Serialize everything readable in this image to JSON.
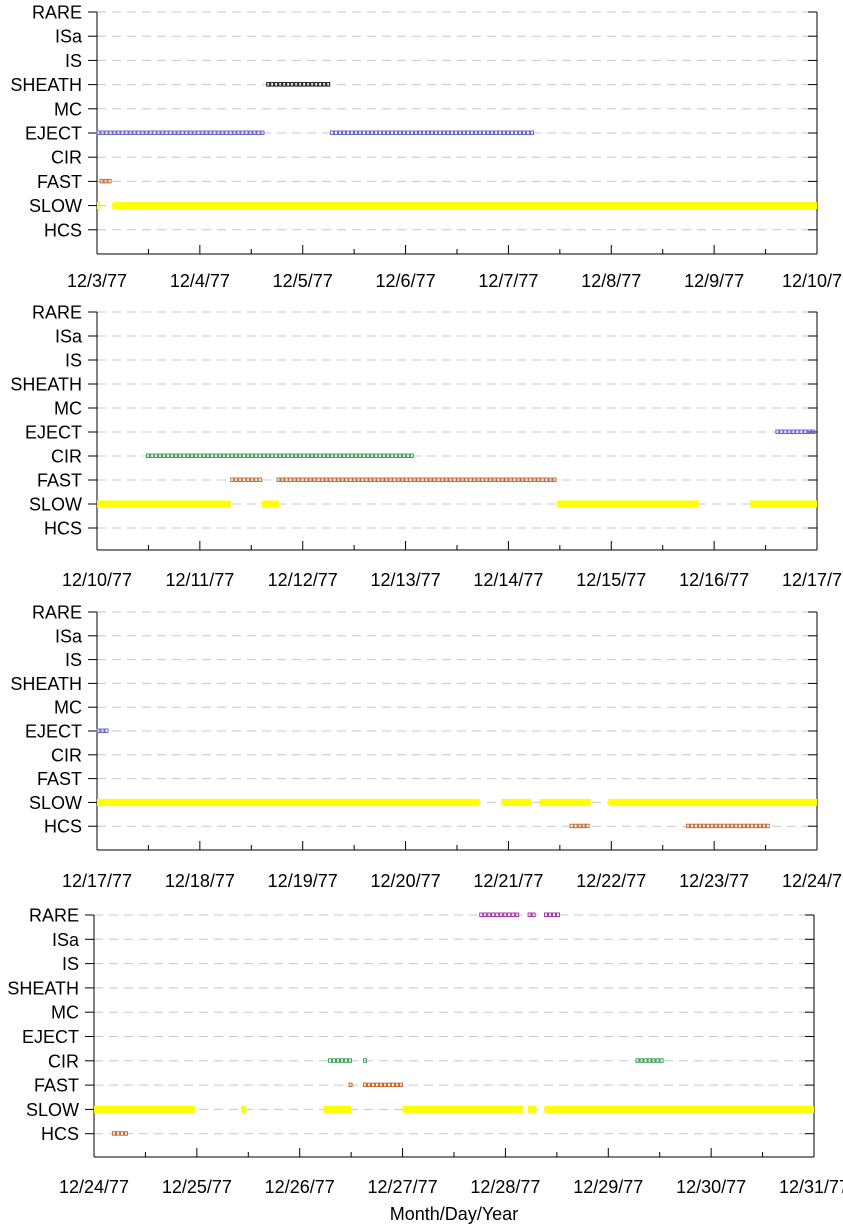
{
  "chart_data": [
    {
      "type": "event-timeline",
      "categories": [
        "RARE",
        "ISa",
        "IS",
        "SHEATH",
        "MC",
        "EJECT",
        "CIR",
        "FAST",
        "SLOW",
        "HCS"
      ],
      "x_ticks": [
        "12/3/77",
        "12/4/77",
        "12/5/77",
        "12/6/77",
        "12/7/77",
        "12/8/77",
        "12/9/77",
        "12/10/77"
      ],
      "xlim_days": [
        0,
        7
      ],
      "grid": "dashed-horizontal",
      "series": [
        {
          "category": "SHEATH",
          "color": "#000000",
          "style": "hollow-square",
          "intervals": [
            [
              1.65,
              2.27
            ]
          ]
        },
        {
          "category": "EJECT",
          "color": "#5a5ad0",
          "style": "hollow-square",
          "intervals": [
            [
              0.0,
              1.65
            ],
            [
              2.27,
              4.27
            ]
          ]
        },
        {
          "category": "FAST",
          "color": "#c46020",
          "style": "hollow-square",
          "intervals": [
            [
              0.03,
              0.15
            ]
          ]
        },
        {
          "category": "SLOW",
          "color": "#ffff00",
          "style": "solid-bar",
          "intervals": [
            [
              0.0,
              0.02
            ],
            [
              0.15,
              7.0
            ]
          ]
        }
      ]
    },
    {
      "type": "event-timeline",
      "categories": [
        "RARE",
        "ISa",
        "IS",
        "SHEATH",
        "MC",
        "EJECT",
        "CIR",
        "FAST",
        "SLOW",
        "HCS"
      ],
      "x_ticks": [
        "12/10/77",
        "12/11/77",
        "12/12/77",
        "12/13/77",
        "12/14/77",
        "12/15/77",
        "12/16/77",
        "12/17/77"
      ],
      "xlim_days": [
        0,
        7
      ],
      "grid": "dashed-horizontal",
      "series": [
        {
          "category": "EJECT",
          "color": "#5a5ad0",
          "style": "hollow-square",
          "intervals": [
            [
              6.6,
              6.97
            ]
          ]
        },
        {
          "category": "CIR",
          "color": "#2a9a4a",
          "style": "hollow-square",
          "intervals": [
            [
              0.48,
              3.1
            ]
          ]
        },
        {
          "category": "FAST",
          "color": "#c46020",
          "style": "hollow-square",
          "intervals": [
            [
              1.3,
              1.62
            ],
            [
              1.75,
              4.47
            ]
          ]
        },
        {
          "category": "SLOW",
          "color": "#ffff00",
          "style": "solid-bar",
          "intervals": [
            [
              0.0,
              1.3
            ],
            [
              1.6,
              1.77
            ],
            [
              4.47,
              5.85
            ],
            [
              6.35,
              7.0
            ]
          ]
        }
      ]
    },
    {
      "type": "event-timeline",
      "categories": [
        "RARE",
        "ISa",
        "IS",
        "SHEATH",
        "MC",
        "EJECT",
        "CIR",
        "FAST",
        "SLOW",
        "HCS"
      ],
      "x_ticks": [
        "12/17/77",
        "12/18/77",
        "12/19/77",
        "12/20/77",
        "12/21/77",
        "12/22/77",
        "12/23/77",
        "12/24/77"
      ],
      "xlim_days": [
        0,
        7
      ],
      "grid": "dashed-horizontal",
      "series": [
        {
          "category": "EJECT",
          "color": "#5a5ad0",
          "style": "hollow-square",
          "intervals": [
            [
              0.0,
              0.1
            ]
          ]
        },
        {
          "category": "SLOW",
          "color": "#ffff00",
          "style": "solid-bar",
          "intervals": [
            [
              0.0,
              3.72
            ],
            [
              3.93,
              4.22
            ],
            [
              4.3,
              4.8
            ],
            [
              4.97,
              7.0
            ]
          ]
        },
        {
          "category": "HCS",
          "color": "#c46020",
          "style": "hollow-square",
          "intervals": [
            [
              4.6,
              4.8
            ],
            [
              5.73,
              6.53
            ]
          ]
        }
      ]
    },
    {
      "type": "event-timeline",
      "categories": [
        "RARE",
        "ISa",
        "IS",
        "SHEATH",
        "MC",
        "EJECT",
        "CIR",
        "FAST",
        "SLOW",
        "HCS"
      ],
      "x_ticks": [
        "12/24/77",
        "12/25/77",
        "12/26/77",
        "12/27/77",
        "12/28/77",
        "12/29/77",
        "12/30/77",
        "12/31/77"
      ],
      "xlim_days": [
        0,
        7
      ],
      "grid": "dashed-horizontal",
      "xlabel": "Month/Day/Year",
      "series": [
        {
          "category": "RARE",
          "color": "#9a2a9a",
          "style": "hollow-square",
          "intervals": [
            [
              3.75,
              4.15
            ],
            [
              4.22,
              4.3
            ],
            [
              4.38,
              4.53
            ]
          ]
        },
        {
          "category": "CIR",
          "color": "#2a9a4a",
          "style": "hollow-square",
          "intervals": [
            [
              2.28,
              2.53
            ],
            [
              2.62,
              2.67
            ],
            [
              5.27,
              5.55
            ]
          ]
        },
        {
          "category": "FAST",
          "color": "#c46020",
          "style": "hollow-square",
          "intervals": [
            [
              2.48,
              2.53
            ],
            [
              2.62,
              3.0
            ]
          ]
        },
        {
          "category": "SLOW",
          "color": "#ffff00",
          "style": "solid-bar",
          "intervals": [
            [
              0.0,
              0.98
            ],
            [
              1.43,
              1.48
            ],
            [
              2.23,
              2.5
            ],
            [
              3.0,
              4.17
            ],
            [
              4.22,
              4.3
            ],
            [
              4.38,
              7.0
            ]
          ]
        },
        {
          "category": "HCS",
          "color": "#c46020",
          "style": "hollow-square",
          "intervals": [
            [
              0.18,
              0.32
            ]
          ]
        }
      ]
    }
  ]
}
